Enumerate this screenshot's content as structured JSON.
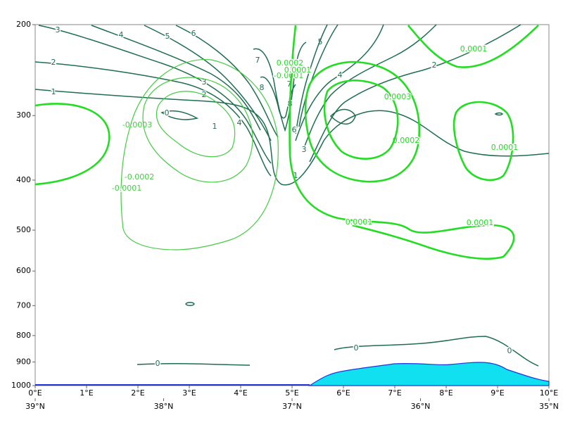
{
  "chart_data": {
    "type": "contour",
    "xlim": [
      0,
      10
    ],
    "xticks": [
      {
        "value": 0,
        "label": "0°E"
      },
      {
        "value": 1,
        "label": "1°E"
      },
      {
        "value": 2,
        "label": "2°E"
      },
      {
        "value": 3,
        "label": "3°E"
      },
      {
        "value": 4,
        "label": "4°E"
      },
      {
        "value": 5,
        "label": "5°E"
      },
      {
        "value": 6,
        "label": "6°E"
      },
      {
        "value": 7,
        "label": "7°E"
      },
      {
        "value": 8,
        "label": "8°E"
      },
      {
        "value": 9,
        "label": "9°E"
      },
      {
        "value": 10,
        "label": "10°E"
      }
    ],
    "x2lim": [
      39,
      35
    ],
    "x2ticks": [
      {
        "value": 39,
        "label": "39°N"
      },
      {
        "value": 38,
        "label": "38°N"
      },
      {
        "value": 37,
        "label": "37°N"
      },
      {
        "value": 36,
        "label": "36°N"
      },
      {
        "value": 35,
        "label": "35°N"
      }
    ],
    "ylim": [
      1000,
      200
    ],
    "y_scale": "log",
    "yticks": [
      200,
      300,
      400,
      500,
      600,
      700,
      800,
      900,
      1000
    ],
    "contours": [
      {
        "level": 0,
        "label": "0",
        "color": "#1f6e50"
      },
      {
        "level": 1,
        "label": "1",
        "color": "#1f6e50"
      },
      {
        "level": 2,
        "label": "2",
        "color": "#1f6e50"
      },
      {
        "level": 3,
        "label": "3",
        "color": "#1f6e50"
      },
      {
        "level": 4,
        "label": "4",
        "color": "#1f6e50"
      },
      {
        "level": 5,
        "label": "5",
        "color": "#1f6e50"
      },
      {
        "level": 6,
        "label": "6",
        "color": "#1f6e50"
      },
      {
        "level": 7,
        "label": "7",
        "color": "#1f6e50"
      },
      {
        "level": 8,
        "label": "8",
        "color": "#1f6e50"
      },
      {
        "level": -0.0003,
        "label": "-0.0003",
        "color": "#44cc44"
      },
      {
        "level": -0.0002,
        "label": "-0.0002",
        "color": "#44cc44"
      },
      {
        "level": -0.0001,
        "label": "-0.0001",
        "color": "#44cc44"
      },
      {
        "level": 0.0001,
        "label": "0.0001",
        "color": "#22dd22"
      },
      {
        "level": 0.0002,
        "label": "0.0002",
        "color": "#22dd22"
      },
      {
        "level": 0.0003,
        "label": "0.0003",
        "color": "#22dd22"
      }
    ]
  }
}
